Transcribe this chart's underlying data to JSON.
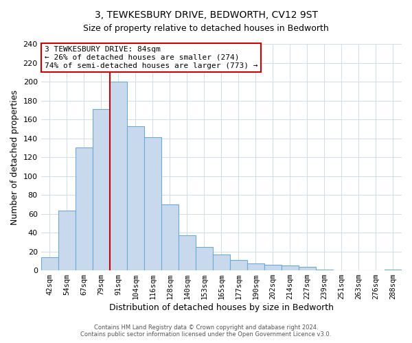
{
  "title": "3, TEWKESBURY DRIVE, BEDWORTH, CV12 9ST",
  "subtitle": "Size of property relative to detached houses in Bedworth",
  "xlabel": "Distribution of detached houses by size in Bedworth",
  "ylabel": "Number of detached properties",
  "bar_labels": [
    "42sqm",
    "54sqm",
    "67sqm",
    "79sqm",
    "91sqm",
    "104sqm",
    "116sqm",
    "128sqm",
    "140sqm",
    "153sqm",
    "165sqm",
    "177sqm",
    "190sqm",
    "202sqm",
    "214sqm",
    "227sqm",
    "239sqm",
    "251sqm",
    "263sqm",
    "276sqm",
    "288sqm"
  ],
  "bar_values": [
    14,
    63,
    130,
    171,
    200,
    153,
    141,
    70,
    37,
    25,
    17,
    11,
    7,
    6,
    5,
    4,
    1,
    0,
    0,
    0,
    1
  ],
  "bar_color": "#c8d9ee",
  "bar_edge_color": "#6aaad4",
  "ylim": [
    0,
    240
  ],
  "yticks": [
    0,
    20,
    40,
    60,
    80,
    100,
    120,
    140,
    160,
    180,
    200,
    220,
    240
  ],
  "annotation_title": "3 TEWKESBURY DRIVE: 84sqm",
  "annotation_line1": "← 26% of detached houses are smaller (274)",
  "annotation_line2": "74% of semi-detached houses are larger (773) →",
  "footer1": "Contains HM Land Registry data © Crown copyright and database right 2024.",
  "footer2": "Contains public sector information licensed under the Open Government Licence v3.0.",
  "background_color": "#ffffff",
  "grid_color": "#d0dce8",
  "red_line_color": "#cc0000",
  "annotation_box_color": "#cc0000"
}
